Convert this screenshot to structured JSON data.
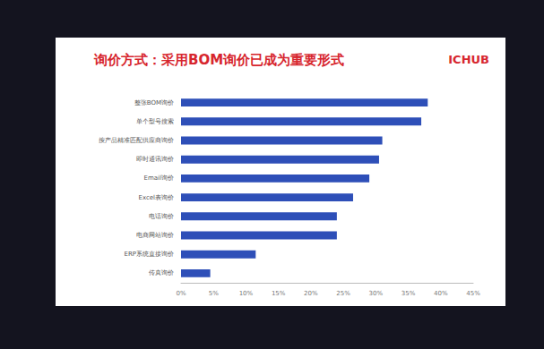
{
  "chart_data": {
    "type": "bar",
    "orientation": "horizontal",
    "title": "询价方式：采用BOM询价已成为重要形式",
    "annotations": [
      "ICHUB"
    ],
    "categories": [
      "整张BOM询价",
      "单个型号搜索",
      "按产品精准匹配供应商询价",
      "即时通讯询价",
      "Email询价",
      "Excel表询价",
      "电话询价",
      "电商网站询价",
      "ERP系统直接询价",
      "传真询价"
    ],
    "values": [
      38,
      37,
      31,
      30.5,
      29,
      26.5,
      24,
      24,
      11.5,
      4.5
    ],
    "color": "#2e4fb8",
    "xlim": [
      0,
      45
    ],
    "xticks": [
      {
        "value": 0,
        "label": "0%"
      },
      {
        "value": 5,
        "label": "5%"
      },
      {
        "value": 10,
        "label": "10%"
      },
      {
        "value": 15,
        "label": "15%"
      },
      {
        "value": 20,
        "label": "20%"
      },
      {
        "value": 25,
        "label": "25%"
      },
      {
        "value": 30,
        "label": "30%"
      },
      {
        "value": 35,
        "label": "35%"
      },
      {
        "value": 40,
        "label": "40%"
      },
      {
        "value": 45,
        "label": "45%"
      }
    ],
    "grid": false
  }
}
